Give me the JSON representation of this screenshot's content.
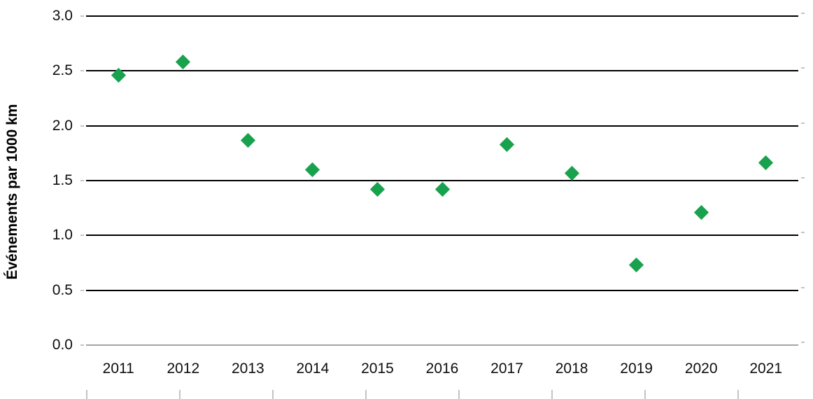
{
  "chart_data": {
    "type": "scatter",
    "title": "",
    "xlabel": "",
    "ylabel": "Événements par 1000 km",
    "categories": [
      "2011",
      "2012",
      "2013",
      "2014",
      "2015",
      "2016",
      "2017",
      "2018",
      "2019",
      "2020",
      "2021"
    ],
    "values": [
      2.46,
      2.58,
      1.87,
      1.6,
      1.42,
      1.42,
      1.83,
      1.57,
      0.73,
      1.21,
      1.66
    ],
    "ylim": [
      0.0,
      3.0
    ],
    "yticks": [
      0.0,
      0.5,
      1.0,
      1.5,
      2.0,
      2.5,
      3.0
    ],
    "ytick_labels": [
      "0.0",
      "0.5",
      "1.0",
      "1.5",
      "2.0",
      "2.5",
      "3.0"
    ],
    "grid": "horizontal-only",
    "legend": "none",
    "marker": {
      "shape": "diamond",
      "color": "#19A24E"
    },
    "colors": {
      "gridline": "#000000",
      "baseline": "#A6A6A6",
      "minor_tick": "#C4C4C4",
      "text": "#0d0d0d"
    }
  }
}
